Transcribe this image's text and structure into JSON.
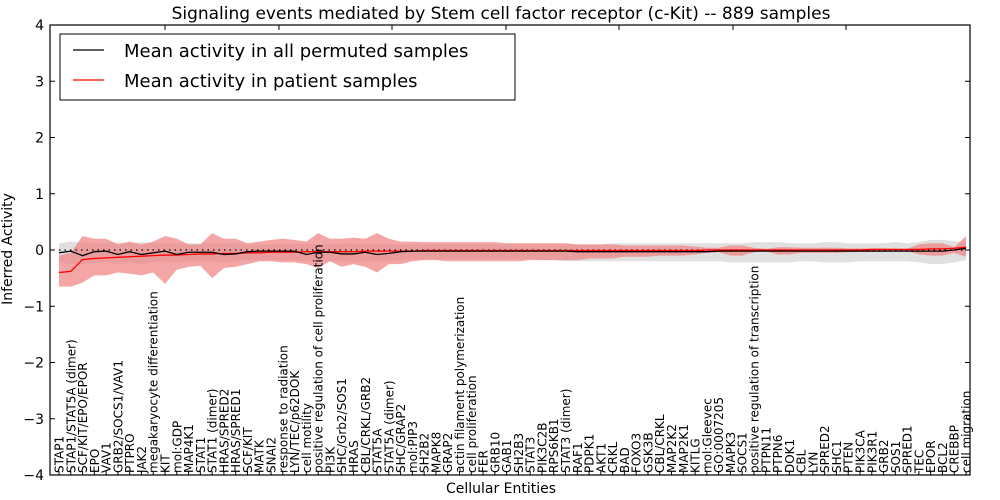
{
  "chart_data": {
    "type": "line",
    "title": "Signaling events mediated by Stem cell factor receptor (c-Kit) -- 889 samples",
    "xlabel": "Cellular Entities",
    "ylabel": "Inferred Activity",
    "ylim": [
      -4,
      4
    ],
    "yticks": [
      -4,
      -3,
      -2,
      -1,
      0,
      1,
      2,
      3,
      4
    ],
    "ytick_labels": [
      "−4",
      "−3",
      "−2",
      "−1",
      "0",
      "1",
      "2",
      "3",
      "4"
    ],
    "grid": false,
    "legend": {
      "placement": "top-left",
      "entries": [
        {
          "label": "Mean activity in all permuted samples",
          "color": "#000000"
        },
        {
          "label": "Mean activity in patient samples",
          "color": "#ff0000"
        }
      ]
    },
    "colors": {
      "permuted_line": "#000000",
      "patient_line": "#ff0000",
      "permuted_band": "#bbbbbb",
      "patient_band": "#f08080",
      "zero_line": "#000000"
    },
    "categories": [
      "STAP1",
      "STAP1/STAT5A (dimer)",
      "SCF/KIT/EPO/EPOR",
      "EPO",
      "VAV1",
      "GRB2/SOCS1/VAV1",
      "PTPRO",
      "JAK2",
      "megakaryocyte differentiation",
      "KIT",
      "mol:GDP",
      "MAP4K1",
      "STAT1",
      "STAT1 (dimer)",
      "HRAS/SPRED2",
      "HRAS/SPRED1",
      "SCF/KIT",
      "MATK",
      "SNAI2",
      "response to radiation",
      "LYN/TEC/p62DOK",
      "cell motility",
      "positive regulation of cell proliferation",
      "PI3K",
      "SHC/Grb2/SOS1",
      "HRAS",
      "CBL/CRKL/GRB2",
      "STAT5A",
      "STAT5A (dimer)",
      "SHC/GRAP2",
      "mol:PIP3",
      "SH2B2",
      "MAPK8",
      "GRAP2",
      "actin filament polymerization",
      "cell proliferation",
      "FER",
      "GRB10",
      "GAB1",
      "SH2B3",
      "STAT3",
      "PIK3C2B",
      "RPS6KB1",
      "STAT3 (dimer)",
      "RAF1",
      "PDPK1",
      "AKT1",
      "CRKL",
      "BAD",
      "FOXO3",
      "GSK3B",
      "CBL/CRKL",
      "MAP2K2",
      "MAP2K1",
      "KITLG",
      "mol:Gleevec",
      "GO:0007205",
      "MAPK3",
      "SOCS1",
      "positive regulation of transcription",
      "PTPN11",
      "PTPN6",
      "DOK1",
      "CBL",
      "LYN",
      "SPRED2",
      "SHC1",
      "PTEN",
      "PIK3CA",
      "PIK3R1",
      "GRB2",
      "SOS1",
      "SPRED1",
      "TEC",
      "EPOR",
      "BCL2",
      "CREBBP",
      "cell migration"
    ],
    "series": [
      {
        "name": "Mean activity in all permuted samples",
        "values": [
          -0.05,
          -0.02,
          -0.1,
          -0.03,
          -0.02,
          -0.08,
          -0.03,
          -0.08,
          -0.05,
          -0.02,
          -0.08,
          -0.04,
          -0.04,
          -0.04,
          -0.08,
          -0.07,
          -0.03,
          -0.02,
          -0.02,
          -0.02,
          -0.02,
          -0.08,
          -0.04,
          -0.04,
          -0.07,
          -0.07,
          -0.04,
          -0.08,
          -0.06,
          -0.03,
          -0.02,
          -0.02,
          -0.02,
          -0.02,
          -0.02,
          -0.02,
          -0.02,
          -0.02,
          -0.02,
          -0.02,
          -0.02,
          -0.02,
          -0.02,
          -0.02,
          -0.03,
          -0.03,
          -0.03,
          -0.03,
          -0.03,
          -0.03,
          -0.03,
          -0.03,
          -0.03,
          -0.03,
          -0.03,
          -0.03,
          -0.02,
          -0.02,
          -0.02,
          -0.02,
          -0.02,
          -0.02,
          -0.02,
          -0.02,
          -0.02,
          -0.02,
          -0.02,
          -0.02,
          -0.02,
          -0.02,
          -0.02,
          -0.02,
          -0.02,
          -0.02,
          -0.02,
          -0.02,
          0.0,
          0.03
        ],
        "band_lower": [
          -0.22,
          -0.25,
          -0.25,
          -0.22,
          -0.22,
          -0.25,
          -0.22,
          -0.25,
          -0.22,
          -0.2,
          -0.22,
          -0.2,
          -0.2,
          -0.2,
          -0.22,
          -0.2,
          -0.18,
          -0.18,
          -0.18,
          -0.18,
          -0.18,
          -0.2,
          -0.2,
          -0.2,
          -0.2,
          -0.22,
          -0.2,
          -0.2,
          -0.2,
          -0.18,
          -0.16,
          -0.16,
          -0.16,
          -0.16,
          -0.16,
          -0.16,
          -0.16,
          -0.16,
          -0.16,
          -0.16,
          -0.16,
          -0.18,
          -0.18,
          -0.2,
          -0.2,
          -0.2,
          -0.2,
          -0.2,
          -0.2,
          -0.2,
          -0.2,
          -0.2,
          -0.2,
          -0.2,
          -0.2,
          -0.2,
          -0.2,
          -0.22,
          -0.22,
          -0.22,
          -0.22,
          -0.22,
          -0.22,
          -0.2,
          -0.2,
          -0.22,
          -0.22,
          -0.22,
          -0.2,
          -0.2,
          -0.2,
          -0.2,
          -0.2,
          -0.22,
          -0.25,
          -0.25,
          -0.22,
          -0.18
        ],
        "band_upper": [
          0.12,
          0.15,
          0.14,
          0.12,
          0.12,
          0.14,
          0.12,
          0.14,
          0.12,
          0.12,
          0.12,
          0.12,
          0.12,
          0.12,
          0.12,
          0.12,
          0.1,
          0.1,
          0.1,
          0.1,
          0.1,
          0.12,
          0.1,
          0.1,
          0.12,
          0.12,
          0.1,
          0.12,
          0.1,
          0.1,
          0.1,
          0.1,
          0.1,
          0.1,
          0.1,
          0.1,
          0.1,
          0.1,
          0.1,
          0.1,
          0.1,
          0.1,
          0.1,
          0.1,
          0.1,
          0.1,
          0.1,
          0.12,
          0.12,
          0.12,
          0.12,
          0.12,
          0.12,
          0.12,
          0.12,
          0.12,
          0.12,
          0.12,
          0.12,
          0.14,
          0.14,
          0.14,
          0.12,
          0.12,
          0.12,
          0.14,
          0.14,
          0.12,
          0.12,
          0.12,
          0.12,
          0.14,
          0.12,
          0.14,
          0.18,
          0.18,
          0.16,
          0.12
        ]
      },
      {
        "name": "Mean activity in patient samples",
        "values": [
          -0.4,
          -0.38,
          -0.17,
          -0.15,
          -0.14,
          -0.13,
          -0.12,
          -0.11,
          -0.1,
          -0.09,
          -0.09,
          -0.08,
          -0.07,
          -0.07,
          -0.06,
          -0.06,
          -0.05,
          -0.05,
          -0.04,
          -0.04,
          -0.04,
          -0.03,
          -0.03,
          -0.03,
          -0.03,
          -0.03,
          -0.02,
          -0.02,
          -0.02,
          -0.02,
          -0.02,
          -0.01,
          -0.01,
          -0.01,
          -0.01,
          -0.01,
          -0.01,
          -0.01,
          -0.01,
          -0.01,
          -0.01,
          -0.01,
          -0.01,
          -0.01,
          -0.01,
          -0.01,
          -0.01,
          -0.01,
          -0.01,
          -0.01,
          -0.01,
          -0.01,
          -0.01,
          -0.01,
          -0.01,
          0.0,
          0.0,
          0.0,
          0.0,
          0.0,
          0.0,
          0.0,
          0.0,
          0.0,
          0.0,
          0.0,
          0.0,
          0.0,
          0.0,
          0.01,
          0.01,
          0.01,
          0.01,
          0.01,
          0.02,
          0.02,
          0.03,
          0.05
        ],
        "band_lower": [
          -0.65,
          -0.65,
          -0.58,
          -0.45,
          -0.45,
          -0.4,
          -0.42,
          -0.45,
          -0.4,
          -0.6,
          -0.35,
          -0.3,
          -0.28,
          -0.5,
          -0.32,
          -0.3,
          -0.25,
          -0.2,
          -0.2,
          -0.22,
          -0.22,
          -0.25,
          -0.32,
          -0.2,
          -0.3,
          -0.25,
          -0.3,
          -0.4,
          -0.25,
          -0.25,
          -0.2,
          -0.18,
          -0.18,
          -0.2,
          -0.2,
          -0.2,
          -0.2,
          -0.2,
          -0.2,
          -0.2,
          -0.18,
          -0.18,
          -0.18,
          -0.18,
          -0.18,
          -0.15,
          -0.15,
          -0.15,
          -0.12,
          -0.12,
          -0.12,
          -0.1,
          -0.1,
          -0.1,
          -0.08,
          -0.05,
          -0.04,
          -0.1,
          -0.1,
          -0.04,
          -0.02,
          -0.08,
          -0.08,
          -0.05,
          -0.05,
          -0.05,
          -0.05,
          -0.04,
          -0.03,
          -0.03,
          -0.03,
          -0.02,
          -0.02,
          -0.08,
          -0.1,
          -0.1,
          -0.05,
          -0.12
        ],
        "band_upper": [
          -0.1,
          -0.05,
          0.25,
          0.2,
          0.2,
          0.1,
          0.15,
          0.1,
          0.15,
          0.25,
          0.2,
          0.1,
          0.1,
          0.3,
          0.2,
          0.2,
          0.12,
          0.15,
          0.18,
          0.2,
          0.18,
          0.15,
          0.3,
          0.2,
          0.2,
          0.22,
          0.2,
          0.3,
          0.2,
          0.15,
          0.15,
          0.14,
          0.14,
          0.14,
          0.14,
          0.14,
          0.14,
          0.14,
          0.12,
          0.12,
          0.12,
          0.12,
          0.12,
          0.12,
          0.1,
          0.1,
          0.1,
          0.1,
          0.08,
          0.08,
          0.08,
          0.08,
          0.08,
          0.08,
          0.06,
          0.04,
          0.04,
          0.08,
          0.08,
          0.04,
          0.02,
          0.05,
          0.05,
          0.04,
          0.04,
          0.04,
          0.04,
          0.03,
          0.03,
          0.03,
          0.03,
          0.02,
          0.02,
          0.1,
          0.12,
          0.12,
          0.05,
          0.25
        ]
      }
    ]
  }
}
